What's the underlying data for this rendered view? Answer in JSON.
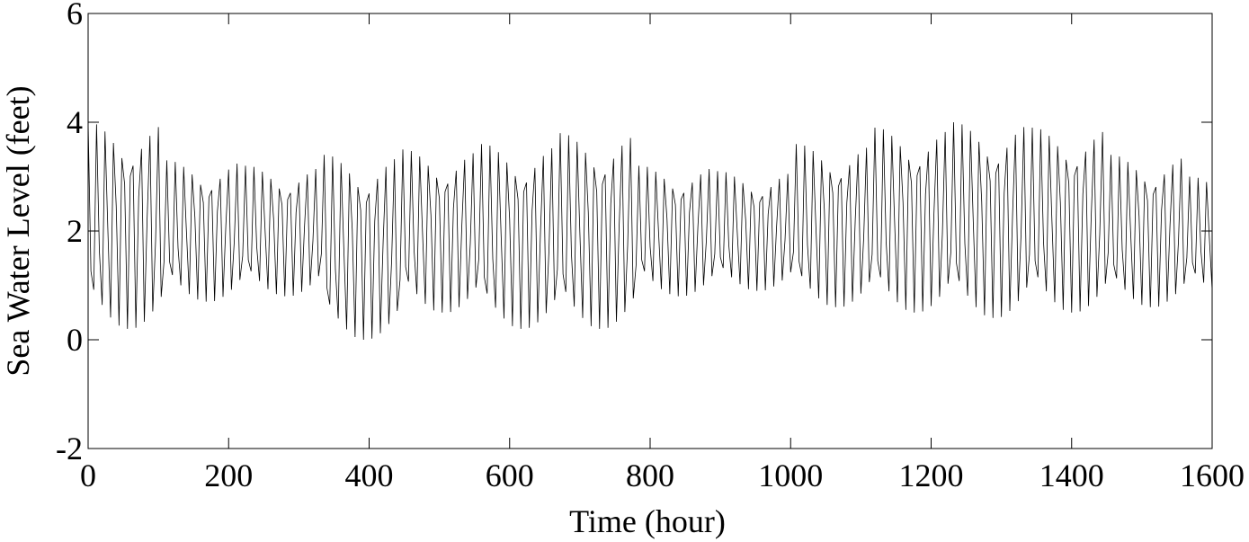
{
  "chart_data": {
    "type": "line",
    "xlabel": "Time (hour)",
    "ylabel": "Sea Water Level (feet)",
    "xlim": [
      0,
      1600
    ],
    "ylim": [
      -2,
      6
    ],
    "xticks": [
      0,
      200,
      400,
      600,
      800,
      1000,
      1200,
      1400,
      1600
    ],
    "yticks": [
      -2,
      0,
      2,
      4,
      6
    ],
    "grid": false,
    "x": [
      0,
      4,
      8,
      12,
      16,
      20,
      24,
      28,
      32,
      36,
      40,
      44,
      48,
      52,
      56,
      60,
      64,
      68,
      72,
      76,
      80,
      84,
      88,
      92,
      96,
      100,
      104,
      108,
      112,
      116,
      120,
      124,
      128,
      132,
      136,
      140,
      144,
      148,
      152,
      156,
      160,
      164,
      168,
      172,
      176,
      180,
      184,
      188,
      192,
      196,
      200,
      204,
      208,
      212,
      216,
      220,
      224,
      228,
      232,
      236,
      240,
      244,
      248,
      252,
      256,
      260,
      264,
      268,
      272,
      276,
      280,
      284,
      288,
      292,
      296,
      300,
      304,
      308,
      312,
      316,
      320,
      324,
      328,
      332,
      336,
      340,
      344,
      348,
      352,
      356,
      360,
      364,
      368,
      372,
      376,
      380,
      384,
      388,
      392,
      396,
      400,
      404,
      408,
      412,
      416,
      420,
      424,
      428,
      432,
      436,
      440,
      444,
      448,
      452,
      456,
      460,
      464,
      468,
      472,
      476,
      480,
      484,
      488,
      492,
      496,
      500,
      504,
      508,
      512,
      516,
      520,
      524,
      528,
      532,
      536,
      540,
      544,
      548,
      552,
      556,
      560,
      564,
      568,
      572,
      576,
      580,
      584,
      588,
      592,
      596,
      600,
      604,
      608,
      612,
      616,
      620,
      624,
      628,
      632,
      636,
      640,
      644,
      648,
      652,
      656,
      660,
      664,
      668,
      672,
      676,
      680,
      684,
      688,
      692,
      696,
      700,
      704,
      708,
      712,
      716,
      720,
      724,
      728,
      732,
      736,
      740,
      744,
      748,
      752,
      756,
      760,
      764,
      768,
      772,
      776,
      780,
      784,
      788,
      792,
      796,
      800,
      804,
      808,
      812,
      816,
      820,
      824,
      828,
      832,
      836,
      840,
      844,
      848,
      852,
      856,
      860,
      864,
      868,
      872,
      876,
      880,
      884,
      888,
      892,
      896,
      900,
      904,
      908,
      912,
      916,
      920,
      924,
      928,
      932,
      936,
      940,
      944,
      948,
      952,
      956,
      960,
      964,
      968,
      972,
      976,
      980,
      984,
      988,
      992,
      996,
      1000,
      1004,
      1008,
      1012,
      1016,
      1020,
      1024,
      1028,
      1032,
      1036,
      1040,
      1044,
      1048,
      1052,
      1056,
      1060,
      1064,
      1068,
      1072,
      1076,
      1080,
      1084,
      1088,
      1092,
      1096,
      1100,
      1104,
      1108,
      1112,
      1116,
      1120,
      1124,
      1128,
      1132,
      1136,
      1140,
      1144,
      1148,
      1152,
      1156,
      1160,
      1164,
      1168,
      1172,
      1176,
      1180,
      1184,
      1188,
      1192,
      1196,
      1200,
      1204,
      1208,
      1212,
      1216,
      1220,
      1224,
      1228,
      1232,
      1236,
      1240,
      1244,
      1248,
      1252,
      1256,
      1260,
      1264,
      1268,
      1272,
      1276,
      1280,
      1284,
      1288,
      1292,
      1296,
      1300,
      1304,
      1308,
      1312,
      1316,
      1320,
      1324,
      1328,
      1332,
      1336,
      1340,
      1344,
      1348,
      1352,
      1356,
      1360,
      1364,
      1368,
      1372,
      1376,
      1380,
      1384,
      1388,
      1392,
      1396,
      1400,
      1404,
      1408,
      1412,
      1416,
      1420,
      1424,
      1428,
      1432,
      1436,
      1440,
      1444,
      1448,
      1452,
      1456,
      1460,
      1464,
      1468,
      1472,
      1476,
      1480,
      1484,
      1488,
      1492,
      1496,
      1500,
      1504,
      1508,
      1512,
      1516,
      1520,
      1524,
      1528,
      1532,
      1536,
      1540,
      1544,
      1548,
      1552,
      1556,
      1560,
      1564,
      1568,
      1572,
      1576,
      1580,
      1584,
      1588,
      1592,
      1596,
      1600
    ],
    "series": [
      {
        "color": "#000000",
        "values": [
          4.0,
          1.26,
          0.92,
          3.96,
          1.64,
          0.64,
          3.83,
          2.06,
          0.41,
          3.62,
          2.46,
          0.26,
          3.34,
          2.86,
          0.2,
          3.01,
          3.2,
          0.22,
          2.63,
          3.51,
          0.33,
          2.23,
          3.75,
          0.52,
          1.81,
          3.91,
          0.79,
          1.43,
          3.3,
          1.43,
          1.19,
          3.27,
          1.69,
          1.0,
          3.18,
          1.97,
          0.84,
          3.04,
          2.25,
          0.74,
          2.85,
          2.52,
          0.7,
          2.62,
          2.75,
          0.71,
          2.36,
          2.96,
          0.79,
          2.09,
          3.13,
          0.92,
          1.8,
          3.24,
          1.1,
          1.54,
          3.2,
          1.47,
          1.26,
          3.18,
          1.71,
          1.08,
          3.09,
          1.98,
          0.93,
          2.96,
          2.23,
          0.84,
          2.78,
          2.48,
          0.8,
          2.58,
          2.7,
          0.81,
          2.34,
          2.89,
          0.88,
          2.08,
          3.04,
          1.0,
          1.82,
          3.14,
          1.17,
          1.58,
          3.4,
          0.95,
          0.65,
          3.37,
          1.29,
          0.39,
          3.25,
          1.67,
          0.19,
          3.06,
          2.02,
          0.05,
          2.81,
          2.38,
          0.0,
          2.52,
          2.69,
          0.02,
          2.18,
          2.96,
          0.12,
          1.82,
          3.18,
          0.29,
          1.44,
          3.32,
          0.53,
          1.1,
          3.5,
          1.34,
          1.07,
          3.47,
          1.64,
          0.84,
          3.37,
          1.97,
          0.66,
          3.2,
          2.29,
          0.54,
          2.98,
          2.6,
          0.5,
          2.72,
          2.87,
          0.51,
          2.42,
          3.11,
          0.6,
          2.11,
          3.31,
          0.75,
          1.77,
          3.43,
          0.96,
          1.47,
          3.6,
          1.15,
          0.85,
          3.57,
          1.49,
          0.59,
          3.45,
          1.87,
          0.39,
          3.26,
          2.22,
          0.25,
          3.01,
          2.58,
          0.2,
          2.72,
          2.89,
          0.22,
          2.38,
          3.16,
          0.32,
          2.02,
          3.38,
          0.49,
          1.64,
          3.52,
          0.73,
          1.3,
          3.8,
          1.21,
          0.88,
          3.76,
          1.57,
          0.61,
          3.64,
          1.96,
          0.4,
          3.44,
          2.34,
          0.25,
          3.17,
          2.72,
          0.2,
          2.86,
          3.04,
          0.22,
          2.5,
          3.33,
          0.33,
          2.13,
          3.57,
          0.51,
          1.73,
          3.71,
          0.76,
          1.37,
          3.2,
          1.47,
          1.26,
          3.18,
          1.71,
          1.08,
          3.09,
          1.98,
          0.93,
          2.96,
          2.23,
          0.84,
          2.78,
          2.48,
          0.8,
          2.58,
          2.7,
          0.81,
          2.34,
          2.89,
          0.88,
          2.08,
          3.04,
          1.0,
          1.82,
          3.14,
          1.17,
          1.58,
          3.1,
          1.52,
          1.32,
          3.08,
          1.74,
          1.15,
          3.0,
          1.98,
          1.02,
          2.88,
          2.21,
          0.93,
          2.72,
          2.44,
          0.9,
          2.53,
          2.64,
          0.91,
          2.31,
          2.81,
          0.98,
          2.08,
          2.96,
          1.09,
          1.83,
          3.05,
          1.24,
          1.61,
          3.6,
          1.44,
          1.17,
          3.57,
          1.74,
          0.94,
          3.47,
          2.07,
          0.76,
          3.3,
          2.39,
          0.64,
          3.08,
          2.7,
          0.6,
          2.82,
          2.97,
          0.61,
          2.52,
          3.21,
          0.7,
          2.21,
          3.41,
          0.85,
          1.87,
          3.53,
          1.06,
          1.57,
          3.9,
          1.45,
          1.15,
          3.87,
          1.79,
          0.89,
          3.75,
          2.17,
          0.69,
          3.56,
          2.52,
          0.55,
          3.31,
          2.88,
          0.5,
          3.02,
          3.19,
          0.52,
          2.68,
          3.46,
          0.62,
          2.32,
          3.68,
          0.79,
          1.94,
          3.82,
          1.03,
          1.6,
          4.0,
          1.41,
          1.08,
          3.96,
          1.77,
          0.81,
          3.84,
          2.16,
          0.6,
          3.64,
          2.54,
          0.45,
          3.37,
          2.92,
          0.4,
          3.06,
          3.24,
          0.42,
          2.7,
          3.53,
          0.53,
          2.33,
          3.77,
          0.71,
          1.93,
          3.91,
          0.96,
          1.57,
          3.9,
          1.45,
          1.15,
          3.87,
          1.79,
          0.89,
          3.75,
          2.17,
          0.69,
          3.56,
          2.52,
          0.55,
          3.31,
          2.88,
          0.5,
          3.02,
          3.19,
          0.52,
          2.68,
          3.46,
          0.62,
          2.32,
          3.68,
          0.79,
          1.94,
          3.82,
          1.03,
          1.6,
          3.4,
          1.38,
          1.13,
          3.37,
          1.66,
          0.92,
          3.27,
          1.97,
          0.75,
          3.12,
          2.27,
          0.64,
          2.91,
          2.56,
          0.6,
          2.67,
          2.81,
          0.61,
          2.39,
          3.04,
          0.7,
          2.1,
          3.22,
          0.84,
          1.79,
          3.33,
          1.03,
          1.51,
          3.0,
          1.42,
          1.22,
          2.98,
          1.64,
          1.05,
          2.9,
          1.88,
          0.92
        ]
      }
    ]
  }
}
